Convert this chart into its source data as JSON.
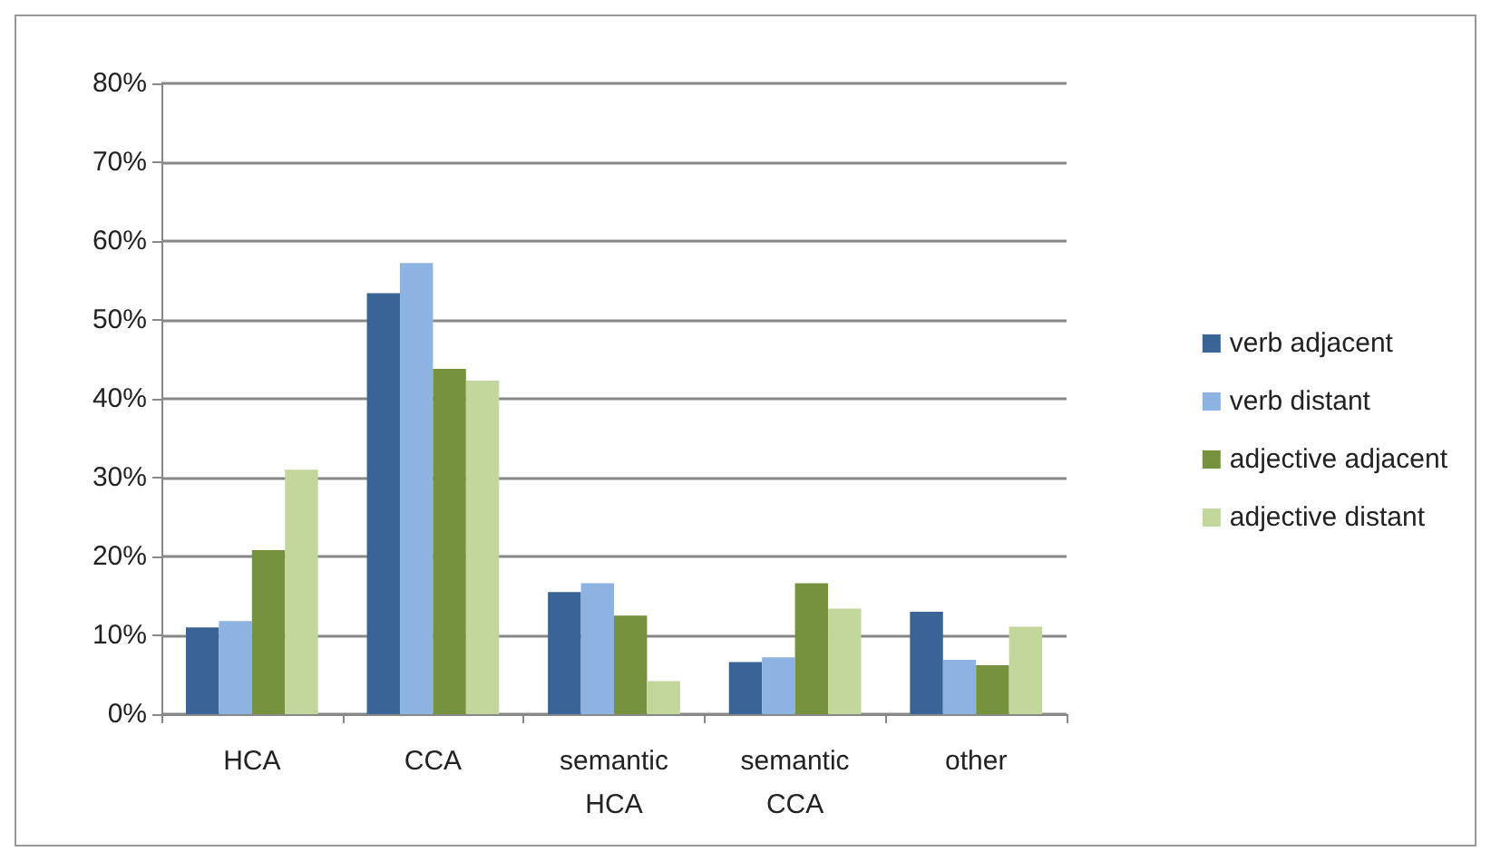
{
  "chart_data": {
    "type": "bar",
    "categories": [
      "HCA",
      "CCA",
      "semantic\nHCA",
      "semantic\nCCA",
      "other"
    ],
    "series": [
      {
        "name": "verb adjacent",
        "color": "#3a6496",
        "values": [
          11.0,
          53.4,
          15.5,
          6.6,
          13.0
        ]
      },
      {
        "name": "verb distant",
        "color": "#8db3e2",
        "values": [
          11.8,
          57.2,
          16.6,
          7.2,
          6.9
        ]
      },
      {
        "name": "adjective adjacent",
        "color": "#76923c",
        "values": [
          20.8,
          43.8,
          12.5,
          16.6,
          6.2
        ]
      },
      {
        "name": "adjective distant",
        "color": "#c3d69b",
        "values": [
          31.0,
          42.3,
          4.2,
          13.4,
          11.1
        ]
      }
    ],
    "ylim": [
      0,
      80
    ],
    "yticks": [
      {
        "value": 0,
        "label": "0%"
      },
      {
        "value": 10,
        "label": "10%"
      },
      {
        "value": 20,
        "label": "20%"
      },
      {
        "value": 30,
        "label": "30%"
      },
      {
        "value": 40,
        "label": "40%"
      },
      {
        "value": 50,
        "label": "50%"
      },
      {
        "value": 60,
        "label": "60%"
      },
      {
        "value": 70,
        "label": "70%"
      },
      {
        "value": 80,
        "label": "80%"
      }
    ],
    "grid": "y",
    "legend": "right"
  }
}
